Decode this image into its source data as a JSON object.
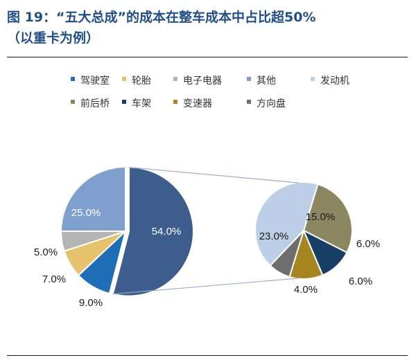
{
  "header": {
    "title_line1": "图 19：“五大总成”的成本在整车成本中占比超50%",
    "title_line2": "（以重卡为例）"
  },
  "colors": {
    "title": "#1f4e89",
    "rule": "#1a1a1a",
    "connector": "#9aaecb"
  },
  "chart_data": {
    "type": "pie",
    "subtype": "pie-of-pie",
    "legend": [
      {
        "name": "驾驶室",
        "color": "#1f6db5"
      },
      {
        "name": "轮胎",
        "color": "#e6c36a"
      },
      {
        "name": "电子电器",
        "color": "#b4b4b4"
      },
      {
        "name": "其他",
        "color": "#7f9fcf"
      },
      {
        "name": "发动机",
        "color": "#bccfe7"
      },
      {
        "name": "前后桥",
        "color": "#8c8760"
      },
      {
        "name": "车架",
        "color": "#173f66"
      },
      {
        "name": "变速器",
        "color": "#a78520"
      },
      {
        "name": "方向盘",
        "color": "#6e6e6e"
      }
    ],
    "main_pie": {
      "slices": [
        {
          "name": "",
          "value": 54.0,
          "label": "54.0%",
          "color": "#3d5d8c",
          "label_color": "#ffffff"
        },
        {
          "name": "驾驶室",
          "value": 9.0,
          "label": "9.0%",
          "color": "#1f6db5",
          "label_color": "#1a1a1a"
        },
        {
          "name": "轮胎",
          "value": 7.0,
          "label": "7.0%",
          "color": "#e6c36a",
          "label_color": "#1a1a1a"
        },
        {
          "name": "电子电器",
          "value": 5.0,
          "label": "5.0%",
          "color": "#b4b4b4",
          "label_color": "#1a1a1a"
        },
        {
          "name": "其他",
          "value": 25.0,
          "label": "25.0%",
          "color": "#7f9fcf",
          "label_color": "#ffffff"
        }
      ]
    },
    "secondary_pie": {
      "slices": [
        {
          "name": "前后桥",
          "value": 15.0,
          "label": "15.0%",
          "color": "#8c8760",
          "label_color": "#1a1a1a"
        },
        {
          "name": "车架",
          "value": 6.0,
          "label": "6.0%",
          "color": "#173f66",
          "label_color": "#1a1a1a"
        },
        {
          "name": "变速器",
          "value": 6.0,
          "label": "6.0%",
          "color": "#a78520",
          "label_color": "#1a1a1a"
        },
        {
          "name": "方向盘",
          "value": 4.0,
          "label": "4.0%",
          "color": "#6e6e6e",
          "label_color": "#1a1a1a"
        },
        {
          "name": "发动机",
          "value": 23.0,
          "label": "23.0%",
          "color": "#bccfe7",
          "label_color": "#1a1a1a"
        }
      ]
    }
  }
}
